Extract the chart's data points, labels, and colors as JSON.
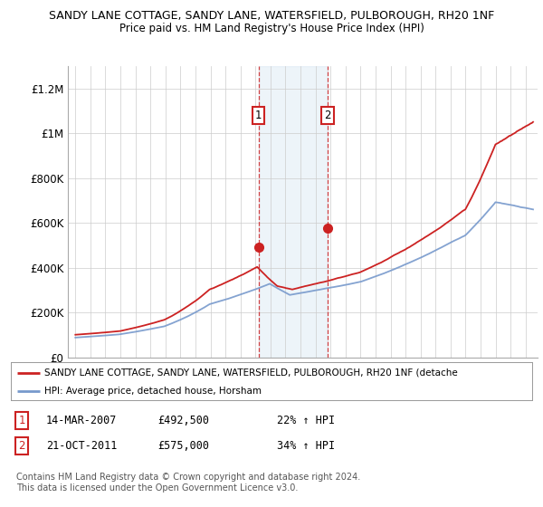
{
  "title1": "SANDY LANE COTTAGE, SANDY LANE, WATERSFIELD, PULBOROUGH, RH20 1NF",
  "title2": "Price paid vs. HM Land Registry's House Price Index (HPI)",
  "ylabel_ticks": [
    "£0",
    "£200K",
    "£400K",
    "£600K",
    "£800K",
    "£1M",
    "£1.2M"
  ],
  "ylabel_values": [
    0,
    200000,
    400000,
    600000,
    800000,
    1000000,
    1200000
  ],
  "ylim": [
    0,
    1300000
  ],
  "sale1_date": "14-MAR-2007",
  "sale1_price": 492500,
  "sale1_pct": "22%",
  "sale2_date": "21-OCT-2011",
  "sale2_price": 575000,
  "sale2_pct": "34%",
  "legend_line1": "SANDY LANE COTTAGE, SANDY LANE, WATERSFIELD, PULBOROUGH, RH20 1NF (detache",
  "legend_line2": "HPI: Average price, detached house, Horsham",
  "footer": "Contains HM Land Registry data © Crown copyright and database right 2024.\nThis data is licensed under the Open Government Licence v3.0.",
  "hpi_color": "#7799cc",
  "price_color": "#cc2222",
  "sale_marker_color": "#cc2222",
  "shade_color": "#cce0f0",
  "box_color": "#cc2222",
  "sale1_year": 2007.21,
  "sale2_year": 2011.8,
  "xlim_left": 1994.5,
  "xlim_right": 2025.8
}
